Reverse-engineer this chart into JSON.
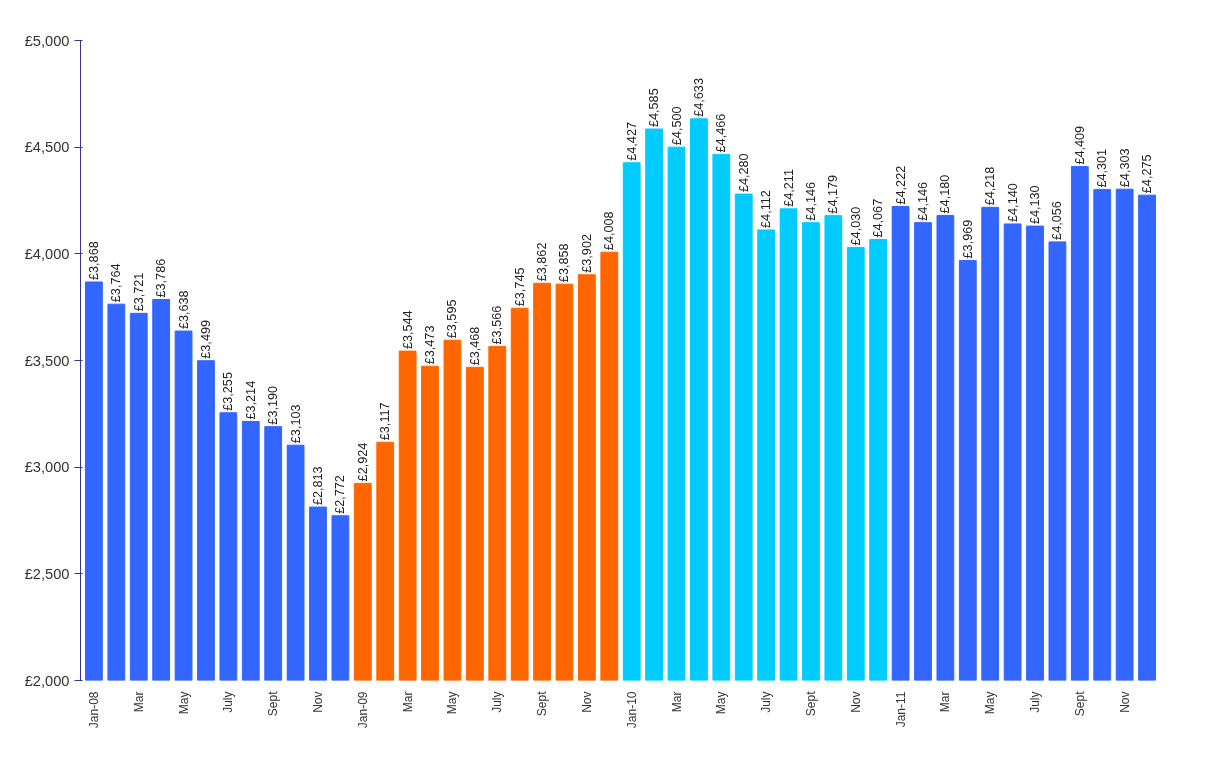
{
  "chart_data": {
    "type": "bar",
    "categories": [
      "Jan-08",
      null,
      "Mar",
      null,
      "May",
      null,
      "July",
      null,
      "Sept",
      null,
      "Nov",
      null,
      "Jan-09",
      null,
      "Mar",
      null,
      "May",
      null,
      "July",
      null,
      "Sept",
      null,
      "Nov",
      null,
      "Jan-10",
      null,
      "Mar",
      null,
      "May",
      null,
      "July",
      null,
      "Sept",
      null,
      "Nov",
      null,
      "Jan-11",
      null,
      "Mar",
      null,
      "May",
      null,
      "July",
      null,
      "Sept",
      null,
      "Nov",
      null
    ],
    "values": [
      3868,
      3764,
      3721,
      3786,
      3638,
      3499,
      3255,
      3214,
      3190,
      3103,
      2813,
      2772,
      2924,
      3117,
      3544,
      3473,
      3595,
      3468,
      3566,
      3745,
      3862,
      3858,
      3902,
      4008,
      4427,
      4585,
      4500,
      4633,
      4466,
      4280,
      4112,
      4211,
      4146,
      4179,
      4030,
      4067,
      4222,
      4146,
      4180,
      3969,
      4218,
      4140,
      4130,
      4056,
      4409,
      4301,
      4303,
      4275
    ],
    "colors": [
      "#3366ff",
      "#3366ff",
      "#3366ff",
      "#3366ff",
      "#3366ff",
      "#3366ff",
      "#3366ff",
      "#3366ff",
      "#3366ff",
      "#3366ff",
      "#3366ff",
      "#3366ff",
      "#ff6600",
      "#ff6600",
      "#ff6600",
      "#ff6600",
      "#ff6600",
      "#ff6600",
      "#ff6600",
      "#ff6600",
      "#ff6600",
      "#ff6600",
      "#ff6600",
      "#ff6600",
      "#00ccff",
      "#00ccff",
      "#00ccff",
      "#00ccff",
      "#00ccff",
      "#00ccff",
      "#00ccff",
      "#00ccff",
      "#00ccff",
      "#00ccff",
      "#00ccff",
      "#00ccff",
      "#3366ff",
      "#3366ff",
      "#3366ff",
      "#3366ff",
      "#3366ff",
      "#3366ff",
      "#3366ff",
      "#3366ff",
      "#3366ff",
      "#3366ff",
      "#3366ff",
      "#3366ff"
    ],
    "value_labels": [
      "£3,868",
      "£3,764",
      "£3,721",
      "£3,786",
      "£3,638",
      "£3,499",
      "£3,255",
      "£3,214",
      "£3,190",
      "£3,103",
      "£2,813",
      "£2,772",
      "£2,924",
      "£3,117",
      "£3,544",
      "£3,473",
      "£3,595",
      "£3,468",
      "£3,566",
      "£3,745",
      "£3,862",
      "£3,858",
      "£3,902",
      "£4,008",
      "£4,427",
      "£4,585",
      "£4,500",
      "£4,633",
      "£4,466",
      "£4,280",
      "£4,112",
      "£4,211",
      "£4,146",
      "£4,179",
      "£4,030",
      "£4,067",
      "£4,222",
      "£4,146",
      "£4,180",
      "£3,969",
      "£4,218",
      "£4,140",
      "£4,130",
      "£4,056",
      "£4,409",
      "£4,301",
      "£4,303",
      "£4,275"
    ],
    "ylim": [
      2000,
      5000
    ],
    "yticks": [
      {
        "value": 2000,
        "label": "£2,000"
      },
      {
        "value": 2500,
        "label": "£2,500"
      },
      {
        "value": 3000,
        "label": "£3,000"
      },
      {
        "value": 3500,
        "label": "£3,500"
      },
      {
        "value": 4000,
        "label": "£4,000"
      },
      {
        "value": 4500,
        "label": "£4,500"
      },
      {
        "value": 5000,
        "label": "£5,000"
      }
    ],
    "grid": false
  }
}
